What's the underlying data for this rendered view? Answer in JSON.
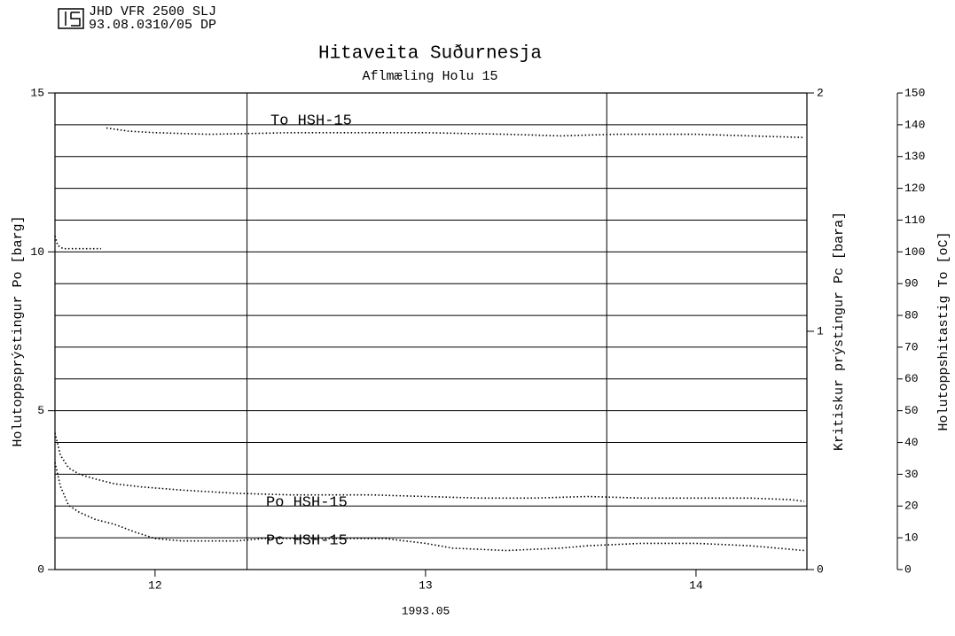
{
  "chart_data": {
    "type": "line",
    "header": [
      "JHD VFR 2500 SLJ",
      "93.08.0310/05 DP"
    ],
    "title": "Hitaveita Suðurnesja",
    "subtitle": "Aflmæling Holu 15",
    "xlabel": "1993.05",
    "ylabel": "Holutoppsprýstingur Po [barg]",
    "y2label": "Kritiskur prýstingur Pc [bara]",
    "y3label": "Holutoppshitastig To [oC]",
    "xlim": [
      11.63,
      14.41
    ],
    "xticks": [
      12,
      13,
      14
    ],
    "xgrid": [
      12.34,
      13.67
    ],
    "ylim": [
      0,
      15
    ],
    "yticks": [
      0,
      5,
      10,
      15
    ],
    "ygrid": [
      1,
      2,
      3,
      4,
      5,
      6,
      7,
      8,
      9,
      10,
      11,
      12,
      13,
      14
    ],
    "y2lim": [
      0,
      2
    ],
    "y2ticks": [
      0,
      1,
      2
    ],
    "y3lim": [
      0,
      150
    ],
    "y3ticks": [
      0,
      10,
      20,
      30,
      40,
      50,
      60,
      70,
      80,
      90,
      100,
      110,
      120,
      130,
      140,
      150
    ],
    "grid": true,
    "series": [
      {
        "name": "To HSH-15",
        "color": "#000000",
        "axis": "y3",
        "x": [
          11.63,
          11.64,
          11.66,
          11.7,
          11.75,
          11.8,
          11.81,
          11.82,
          11.9,
          12.0,
          12.2,
          12.5,
          12.8,
          13.0,
          13.3,
          13.5,
          13.7,
          14.0,
          14.2,
          14.4
        ],
        "values": [
          105,
          102,
          101,
          101,
          101,
          101,
          null,
          139,
          138,
          137.5,
          137,
          137.5,
          137.5,
          137.5,
          137,
          136.5,
          137,
          137,
          136.5,
          136
        ]
      },
      {
        "name": "Po HSH-15",
        "color": "#000000",
        "axis": "y",
        "x": [
          11.63,
          11.65,
          11.68,
          11.72,
          11.78,
          11.85,
          11.95,
          12.1,
          12.3,
          12.5,
          12.8,
          13.0,
          13.2,
          13.4,
          13.6,
          13.8,
          14.0,
          14.2,
          14.35,
          14.4
        ],
        "values": [
          4.3,
          3.6,
          3.2,
          3.0,
          2.85,
          2.7,
          2.6,
          2.5,
          2.4,
          2.35,
          2.35,
          2.3,
          2.25,
          2.25,
          2.3,
          2.25,
          2.25,
          2.25,
          2.2,
          2.15
        ]
      },
      {
        "name": "Pc HSH-15",
        "color": "#000000",
        "axis": "y2",
        "x": [
          11.63,
          11.65,
          11.68,
          11.72,
          11.78,
          11.85,
          11.92,
          12.0,
          12.1,
          12.2,
          12.3,
          12.4,
          12.6,
          12.85,
          13.0,
          13.1,
          13.3,
          13.5,
          13.6,
          13.8,
          14.0,
          14.2,
          14.3,
          14.4
        ],
        "values": [
          0.45,
          0.35,
          0.27,
          0.24,
          0.21,
          0.19,
          0.16,
          0.13,
          0.12,
          0.12,
          0.12,
          0.13,
          0.13,
          0.13,
          0.11,
          0.09,
          0.08,
          0.09,
          0.1,
          0.11,
          0.11,
          0.1,
          0.09,
          0.08
        ]
      }
    ]
  }
}
